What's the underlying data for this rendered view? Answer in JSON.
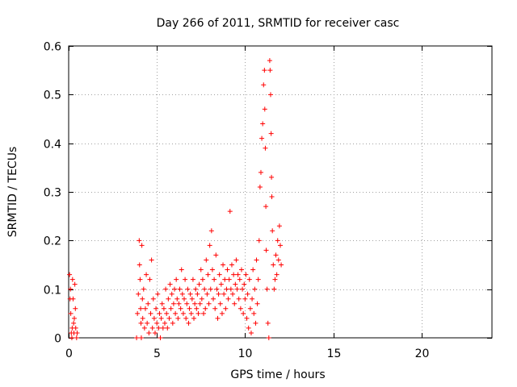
{
  "chart_data": {
    "type": "scatter",
    "title": "Day 266 of 2011, SRMTID for receiver casc",
    "xlabel": "GPS time / hours",
    "ylabel": "SRMTID / TECUs",
    "xlim": [
      0,
      24
    ],
    "ylim": [
      0,
      0.6
    ],
    "xticks": [
      0,
      5,
      10,
      15,
      20
    ],
    "yticks": [
      0,
      0.1,
      0.2,
      0.3,
      0.4,
      0.5,
      0.6
    ],
    "xtick_labels": [
      "0",
      "5",
      "10",
      "15",
      "20"
    ],
    "ytick_labels": [
      "0",
      "0.1",
      "0.2",
      "0.3",
      "0.4",
      "0.5",
      "0.6"
    ],
    "grid": true,
    "marker": "+",
    "color": "#ff0000",
    "series": [
      {
        "name": "casc",
        "points": [
          [
            0.05,
            0.13
          ],
          [
            0.08,
            0.08
          ],
          [
            0.1,
            0.1
          ],
          [
            0.12,
            0.05
          ],
          [
            0.15,
            0.01
          ],
          [
            0.18,
            0.0
          ],
          [
            0.2,
            0.02
          ],
          [
            0.22,
            0.12
          ],
          [
            0.25,
            0.08
          ],
          [
            0.28,
            0.03
          ],
          [
            0.3,
            0.01
          ],
          [
            0.32,
            0.04
          ],
          [
            0.35,
            0.11
          ],
          [
            0.38,
            0.06
          ],
          [
            0.4,
            0.02
          ],
          [
            0.45,
            0.0
          ],
          [
            0.48,
            0.01
          ],
          [
            3.85,
            0.0
          ],
          [
            3.9,
            0.05
          ],
          [
            3.95,
            0.09
          ],
          [
            4.0,
            0.2
          ],
          [
            4.02,
            0.15
          ],
          [
            4.05,
            0.12
          ],
          [
            4.08,
            0.06
          ],
          [
            4.1,
            0.03
          ],
          [
            4.12,
            0.0
          ],
          [
            4.15,
            0.19
          ],
          [
            4.18,
            0.08
          ],
          [
            4.2,
            0.04
          ],
          [
            4.25,
            0.1
          ],
          [
            4.3,
            0.02
          ],
          [
            4.35,
            0.06
          ],
          [
            4.4,
            0.13
          ],
          [
            4.45,
            0.03
          ],
          [
            4.5,
            0.07
          ],
          [
            4.55,
            0.01
          ],
          [
            4.6,
            0.12
          ],
          [
            4.65,
            0.05
          ],
          [
            4.7,
            0.16
          ],
          [
            4.75,
            0.02
          ],
          [
            4.8,
            0.08
          ],
          [
            4.85,
            0.04
          ],
          [
            4.9,
            0.01
          ],
          [
            4.95,
            0.06
          ],
          [
            5.0,
            0.03
          ],
          [
            5.05,
            0.09
          ],
          [
            5.1,
            0.02
          ],
          [
            5.15,
            0.05
          ],
          [
            5.2,
            0.0
          ],
          [
            5.25,
            0.04
          ],
          [
            5.3,
            0.07
          ],
          [
            5.35,
            0.02
          ],
          [
            5.4,
            0.06
          ],
          [
            5.45,
            0.03
          ],
          [
            5.5,
            0.1
          ],
          [
            5.55,
            0.05
          ],
          [
            5.6,
            0.02
          ],
          [
            5.65,
            0.08
          ],
          [
            5.7,
            0.04
          ],
          [
            5.75,
            0.11
          ],
          [
            5.8,
            0.06
          ],
          [
            5.85,
            0.09
          ],
          [
            5.9,
            0.03
          ],
          [
            5.95,
            0.07
          ],
          [
            6.0,
            0.1
          ],
          [
            6.05,
            0.05
          ],
          [
            6.1,
            0.12
          ],
          [
            6.15,
            0.08
          ],
          [
            6.2,
            0.04
          ],
          [
            6.25,
            0.07
          ],
          [
            6.3,
            0.1
          ],
          [
            6.35,
            0.06
          ],
          [
            6.4,
            0.14
          ],
          [
            6.45,
            0.09
          ],
          [
            6.5,
            0.05
          ],
          [
            6.55,
            0.08
          ],
          [
            6.6,
            0.12
          ],
          [
            6.65,
            0.04
          ],
          [
            6.7,
            0.07
          ],
          [
            6.75,
            0.1
          ],
          [
            6.8,
            0.03
          ],
          [
            6.85,
            0.06
          ],
          [
            6.9,
            0.09
          ],
          [
            6.95,
            0.05
          ],
          [
            7.0,
            0.08
          ],
          [
            7.05,
            0.12
          ],
          [
            7.1,
            0.04
          ],
          [
            7.15,
            0.07
          ],
          [
            7.2,
            0.1
          ],
          [
            7.25,
            0.06
          ],
          [
            7.3,
            0.09
          ],
          [
            7.35,
            0.05
          ],
          [
            7.4,
            0.11
          ],
          [
            7.45,
            0.07
          ],
          [
            7.5,
            0.14
          ],
          [
            7.55,
            0.08
          ],
          [
            7.6,
            0.12
          ],
          [
            7.65,
            0.05
          ],
          [
            7.7,
            0.1
          ],
          [
            7.75,
            0.06
          ],
          [
            7.8,
            0.16
          ],
          [
            7.85,
            0.09
          ],
          [
            7.9,
            0.13
          ],
          [
            7.95,
            0.07
          ],
          [
            8.0,
            0.19
          ],
          [
            8.05,
            0.1
          ],
          [
            8.1,
            0.22
          ],
          [
            8.15,
            0.14
          ],
          [
            8.2,
            0.08
          ],
          [
            8.25,
            0.12
          ],
          [
            8.3,
            0.06
          ],
          [
            8.35,
            0.17
          ],
          [
            8.4,
            0.1
          ],
          [
            8.45,
            0.04
          ],
          [
            8.5,
            0.09
          ],
          [
            8.55,
            0.13
          ],
          [
            8.6,
            0.07
          ],
          [
            8.65,
            0.11
          ],
          [
            8.7,
            0.05
          ],
          [
            8.75,
            0.15
          ],
          [
            8.8,
            0.09
          ],
          [
            8.85,
            0.12
          ],
          [
            8.9,
            0.06
          ],
          [
            8.95,
            0.1
          ],
          [
            9.0,
            0.14
          ],
          [
            9.05,
            0.08
          ],
          [
            9.1,
            0.12
          ],
          [
            9.15,
            0.26
          ],
          [
            9.2,
            0.1
          ],
          [
            9.25,
            0.15
          ],
          [
            9.3,
            0.09
          ],
          [
            9.35,
            0.13
          ],
          [
            9.4,
            0.07
          ],
          [
            9.45,
            0.11
          ],
          [
            9.5,
            0.16
          ],
          [
            9.55,
            0.1
          ],
          [
            9.6,
            0.13
          ],
          [
            9.65,
            0.08
          ],
          [
            9.7,
            0.12
          ],
          [
            9.75,
            0.06
          ],
          [
            9.8,
            0.14
          ],
          [
            9.85,
            0.1
          ],
          [
            9.9,
            0.05
          ],
          [
            9.95,
            0.11
          ],
          [
            10.0,
            0.08
          ],
          [
            10.05,
            0.13
          ],
          [
            10.1,
            0.04
          ],
          [
            10.15,
            0.09
          ],
          [
            10.2,
            0.02
          ],
          [
            10.25,
            0.12
          ],
          [
            10.3,
            0.06
          ],
          [
            10.35,
            0.01
          ],
          [
            10.4,
            0.08
          ],
          [
            10.45,
            0.14
          ],
          [
            10.5,
            0.05
          ],
          [
            10.55,
            0.1
          ],
          [
            10.6,
            0.03
          ],
          [
            10.65,
            0.16
          ],
          [
            10.7,
            0.07
          ],
          [
            10.75,
            0.12
          ],
          [
            10.8,
            0.2
          ],
          [
            10.85,
            0.31
          ],
          [
            10.9,
            0.34
          ],
          [
            10.95,
            0.41
          ],
          [
            11.0,
            0.44
          ],
          [
            11.05,
            0.52
          ],
          [
            11.1,
            0.55
          ],
          [
            11.12,
            0.47
          ],
          [
            11.15,
            0.39
          ],
          [
            11.18,
            0.27
          ],
          [
            11.2,
            0.18
          ],
          [
            11.25,
            0.1
          ],
          [
            11.3,
            0.03
          ],
          [
            11.35,
            0.0
          ],
          [
            11.4,
            0.57
          ],
          [
            11.42,
            0.55
          ],
          [
            11.45,
            0.5
          ],
          [
            11.48,
            0.42
          ],
          [
            11.5,
            0.33
          ],
          [
            11.52,
            0.29
          ],
          [
            11.55,
            0.22
          ],
          [
            11.6,
            0.15
          ],
          [
            11.65,
            0.1
          ],
          [
            11.7,
            0.12
          ],
          [
            11.75,
            0.17
          ],
          [
            11.8,
            0.13
          ],
          [
            11.85,
            0.2
          ],
          [
            11.9,
            0.16
          ],
          [
            11.95,
            0.23
          ],
          [
            12.0,
            0.19
          ],
          [
            12.05,
            0.15
          ]
        ]
      }
    ]
  }
}
